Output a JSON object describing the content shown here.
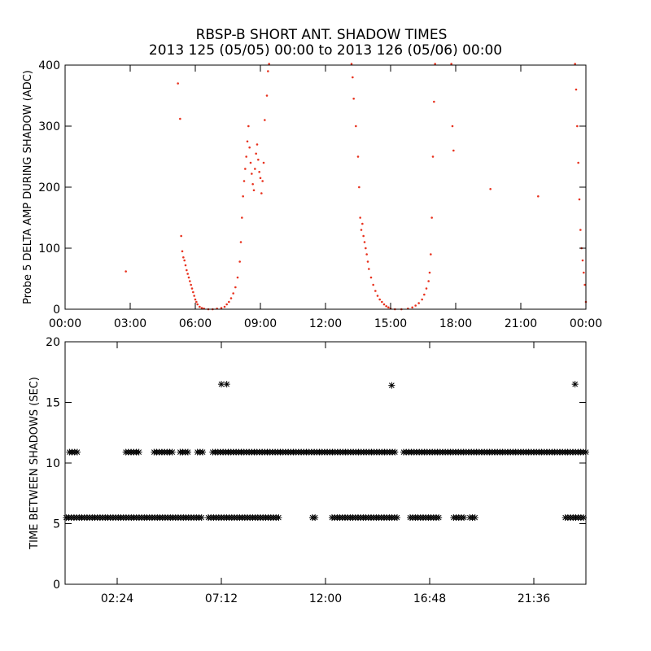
{
  "figure": {
    "title_line1": "RBSP-B SHORT ANT. SHADOW TIMES",
    "title_line2": "2013 125 (05/05) 00:00 to 2013 126 (05/06) 00:00"
  },
  "chart_data": [
    {
      "type": "scatter",
      "title": "",
      "xlabel": "",
      "ylabel": "Probe 5 DELTA AMP DURING SHADOW (ADC)",
      "x_unit": "hours",
      "xlim": [
        0,
        24
      ],
      "ylim": [
        0,
        400
      ],
      "x_tick_values": [
        0,
        3,
        6,
        9,
        12,
        15,
        18,
        21,
        24
      ],
      "x_tick_labels": [
        "00:00",
        "03:00",
        "06:00",
        "09:00",
        "12:00",
        "15:00",
        "18:00",
        "21:00",
        "00:00"
      ],
      "y_tick_values": [
        0,
        100,
        200,
        300,
        400
      ],
      "y_tick_labels": [
        "0",
        "100",
        "200",
        "300",
        "400"
      ],
      "marker_color": "#e8321e",
      "grid": false,
      "legend": "none",
      "points": [
        [
          2.8,
          62
        ],
        [
          5.2,
          370
        ],
        [
          5.3,
          312
        ],
        [
          5.35,
          120
        ],
        [
          5.4,
          95
        ],
        [
          5.45,
          85
        ],
        [
          5.5,
          80
        ],
        [
          5.55,
          72
        ],
        [
          5.6,
          64
        ],
        [
          5.65,
          58
        ],
        [
          5.7,
          52
        ],
        [
          5.75,
          46
        ],
        [
          5.8,
          40
        ],
        [
          5.85,
          34
        ],
        [
          5.9,
          28
        ],
        [
          5.95,
          22
        ],
        [
          6.0,
          16
        ],
        [
          6.05,
          12
        ],
        [
          6.1,
          8
        ],
        [
          6.2,
          4
        ],
        [
          6.3,
          2
        ],
        [
          6.4,
          1
        ],
        [
          6.6,
          0
        ],
        [
          6.8,
          0
        ],
        [
          7.0,
          1
        ],
        [
          7.2,
          2
        ],
        [
          7.35,
          4
        ],
        [
          7.45,
          8
        ],
        [
          7.55,
          12
        ],
        [
          7.65,
          18
        ],
        [
          7.75,
          26
        ],
        [
          7.85,
          36
        ],
        [
          7.95,
          52
        ],
        [
          8.05,
          78
        ],
        [
          8.1,
          110
        ],
        [
          8.15,
          150
        ],
        [
          8.2,
          185
        ],
        [
          8.25,
          210
        ],
        [
          8.3,
          230
        ],
        [
          8.35,
          250
        ],
        [
          8.4,
          275
        ],
        [
          8.45,
          300
        ],
        [
          8.5,
          265
        ],
        [
          8.55,
          240
        ],
        [
          8.6,
          222
        ],
        [
          8.65,
          205
        ],
        [
          8.7,
          195
        ],
        [
          8.75,
          230
        ],
        [
          8.8,
          255
        ],
        [
          8.85,
          270
        ],
        [
          8.9,
          245
        ],
        [
          8.95,
          225
        ],
        [
          9.0,
          215
        ],
        [
          9.05,
          190
        ],
        [
          9.1,
          210
        ],
        [
          9.15,
          240
        ],
        [
          9.2,
          310
        ],
        [
          9.3,
          350
        ],
        [
          9.35,
          390
        ],
        [
          9.4,
          402
        ],
        [
          13.2,
          402
        ],
        [
          13.25,
          380
        ],
        [
          13.3,
          345
        ],
        [
          13.4,
          300
        ],
        [
          13.5,
          250
        ],
        [
          13.55,
          200
        ],
        [
          13.6,
          150
        ],
        [
          13.65,
          130
        ],
        [
          13.7,
          140
        ],
        [
          13.75,
          120
        ],
        [
          13.8,
          110
        ],
        [
          13.85,
          100
        ],
        [
          13.9,
          90
        ],
        [
          13.95,
          78
        ],
        [
          14.0,
          66
        ],
        [
          14.1,
          52
        ],
        [
          14.2,
          40
        ],
        [
          14.3,
          30
        ],
        [
          14.4,
          22
        ],
        [
          14.5,
          16
        ],
        [
          14.6,
          12
        ],
        [
          14.7,
          8
        ],
        [
          14.8,
          5
        ],
        [
          14.9,
          3
        ],
        [
          15.0,
          1
        ],
        [
          15.2,
          0
        ],
        [
          15.5,
          0
        ],
        [
          15.8,
          1
        ],
        [
          16.0,
          3
        ],
        [
          16.15,
          6
        ],
        [
          16.3,
          10
        ],
        [
          16.45,
          16
        ],
        [
          16.55,
          24
        ],
        [
          16.65,
          34
        ],
        [
          16.75,
          46
        ],
        [
          16.8,
          60
        ],
        [
          16.85,
          90
        ],
        [
          16.9,
          150
        ],
        [
          16.95,
          250
        ],
        [
          17.0,
          340
        ],
        [
          17.05,
          402
        ],
        [
          17.8,
          402
        ],
        [
          17.85,
          300
        ],
        [
          17.9,
          260
        ],
        [
          19.6,
          197
        ],
        [
          21.8,
          185
        ],
        [
          23.5,
          402
        ],
        [
          23.55,
          360
        ],
        [
          23.6,
          300
        ],
        [
          23.65,
          240
        ],
        [
          23.7,
          180
        ],
        [
          23.75,
          130
        ],
        [
          23.8,
          100
        ],
        [
          23.85,
          80
        ],
        [
          23.9,
          60
        ],
        [
          23.95,
          40
        ],
        [
          24.0,
          12
        ]
      ]
    },
    {
      "type": "scatter",
      "title": "",
      "xlabel": "",
      "ylabel": "TIME BETWEEN SHADOWS (SEC)",
      "x_unit": "hours",
      "xlim": [
        0,
        24
      ],
      "ylim": [
        0,
        20
      ],
      "x_tick_values": [
        2.4,
        7.2,
        12,
        16.8,
        21.6
      ],
      "x_tick_labels": [
        "02:24",
        "07:12",
        "12:00",
        "16:48",
        "21:36"
      ],
      "y_tick_values": [
        0,
        5,
        10,
        15,
        20
      ],
      "y_tick_labels": [
        "0",
        "5",
        "10",
        "15",
        "20"
      ],
      "marker": "asterisk",
      "marker_color": "#000000",
      "grid": false,
      "legend": "none",
      "level_low": 5.5,
      "level_high": 10.9,
      "outlier_value": 16.5,
      "low_segments": [
        [
          0.05,
          6.4
        ],
        [
          6.6,
          9.9
        ],
        [
          11.4,
          11.55
        ],
        [
          12.3,
          15.3
        ],
        [
          15.9,
          17.25
        ],
        [
          17.9,
          18.45
        ],
        [
          18.65,
          18.95
        ],
        [
          23.05,
          24.0
        ]
      ],
      "high_segments": [
        [
          0.2,
          0.6
        ],
        [
          2.8,
          3.4
        ],
        [
          4.1,
          5.0
        ],
        [
          5.3,
          5.75
        ],
        [
          6.1,
          6.4
        ],
        [
          6.8,
          15.3
        ],
        [
          15.6,
          24.0
        ]
      ],
      "outliers": [
        [
          7.2,
          16.5
        ],
        [
          7.45,
          16.5
        ],
        [
          15.05,
          16.4
        ],
        [
          23.5,
          16.5
        ]
      ]
    }
  ]
}
